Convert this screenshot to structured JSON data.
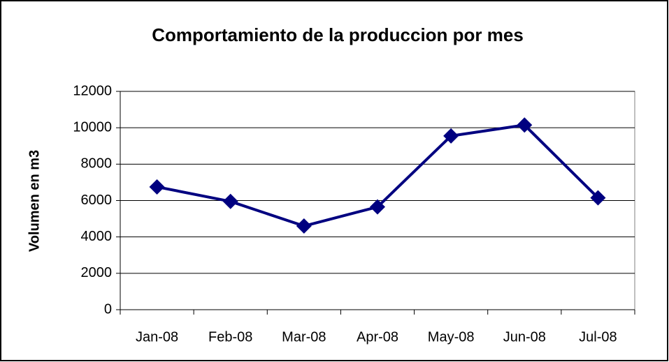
{
  "chart_data": {
    "type": "line",
    "title": "Comportamiento de la produccion por mes",
    "y_label": "Volumen en m3",
    "categories": [
      "Jan-08",
      "Feb-08",
      "Mar-08",
      "Apr-08",
      "May-08",
      "Jun-08",
      "Jul-08"
    ],
    "values": [
      6750,
      5950,
      4600,
      5650,
      9550,
      10150,
      6150
    ],
    "color": "#000080",
    "ylim": [
      0,
      12000
    ],
    "yticks": [
      0,
      2000,
      4000,
      6000,
      8000,
      10000,
      12000
    ],
    "grid": true
  }
}
